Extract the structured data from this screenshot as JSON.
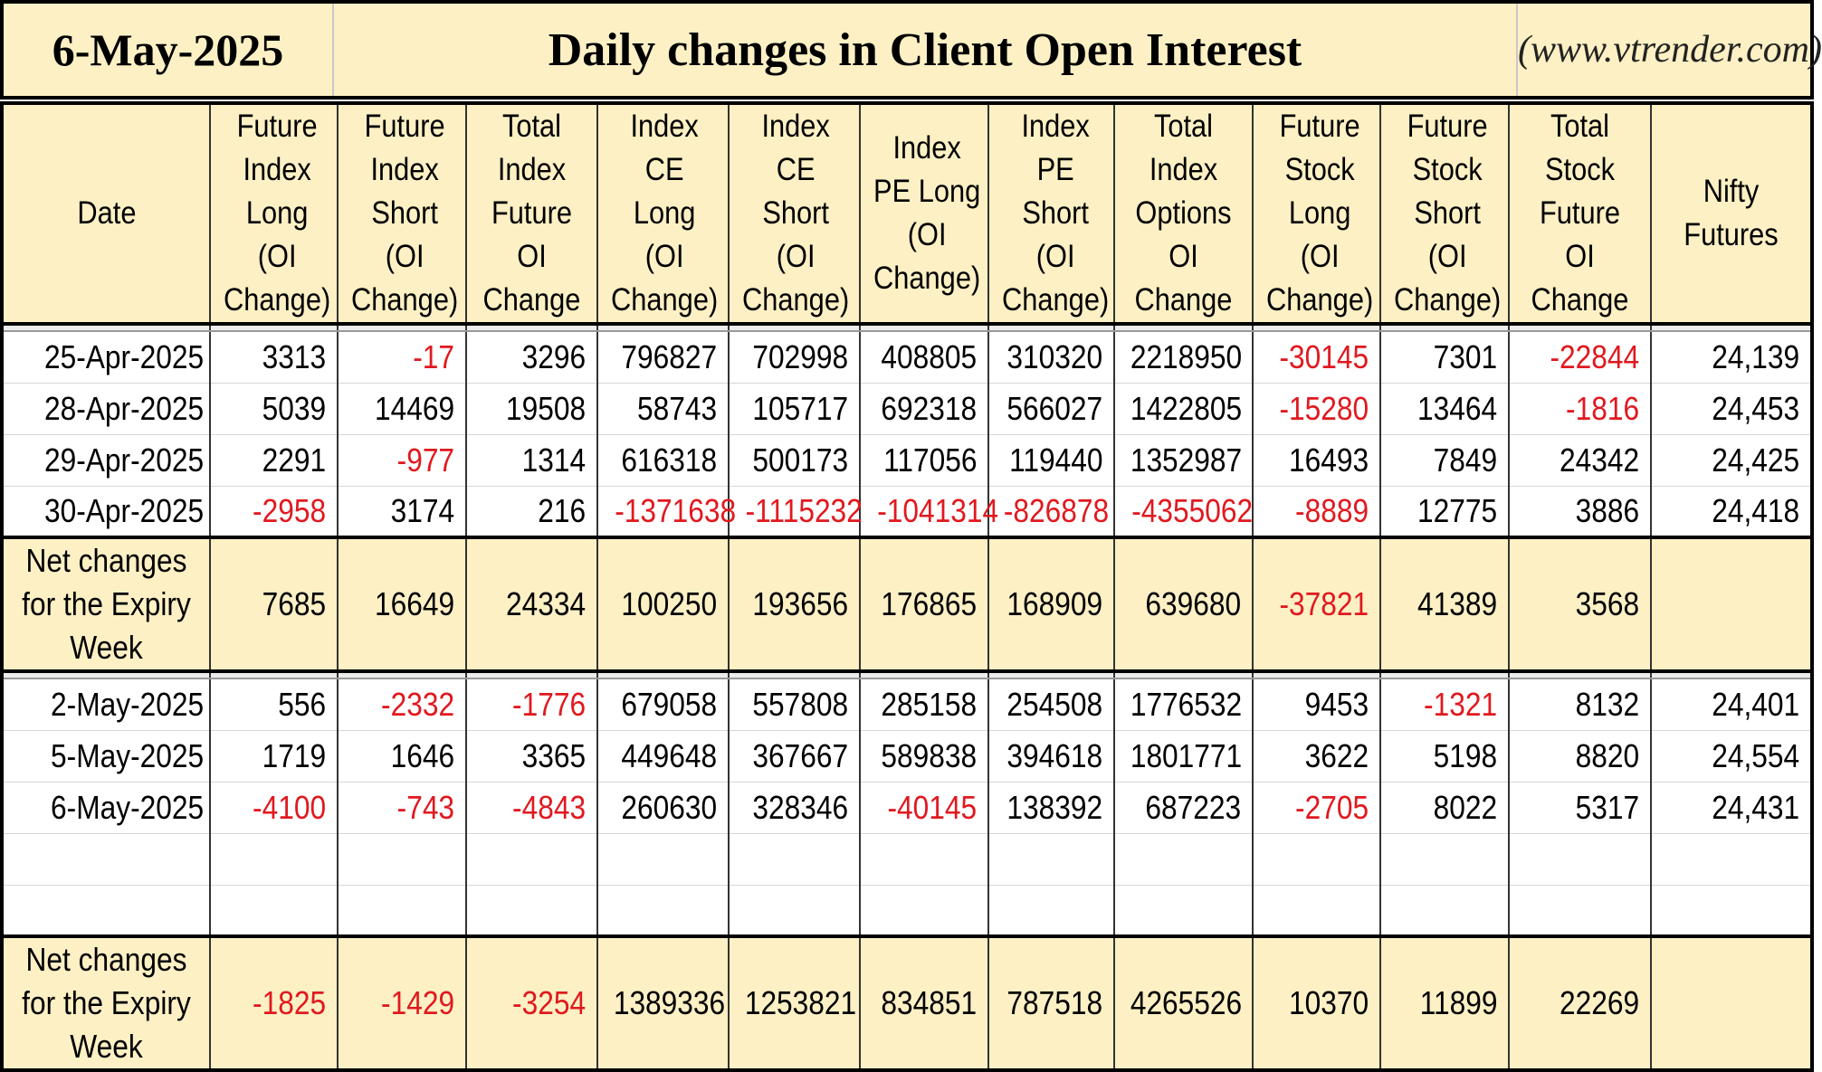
{
  "header": {
    "date": "6-May-2025",
    "title": "Daily changes in Client Open Interest",
    "website": "(www.vtrender.com)"
  },
  "columns": [
    "Date",
    "Future Index Long (OI Change)",
    "Future Index Short (OI Change)",
    "Total Index Future OI Change",
    "Index CE Long (OI Change)",
    "Index CE Short (OI Change)",
    "Index PE Long (OI Change)",
    "Index PE Short (OI Change)",
    "Total Index Options OI Change",
    "Future Stock Long (OI Change)",
    "Future Stock Short (OI Change)",
    "Total Stock Future OI Change",
    "Nifty Futures"
  ],
  "week1": {
    "rows": [
      [
        "25-Apr-2025",
        "3313",
        "-17",
        "3296",
        "796827",
        "702998",
        "408805",
        "310320",
        "2218950",
        "-30145",
        "7301",
        "-22844",
        "24,139"
      ],
      [
        "28-Apr-2025",
        "5039",
        "14469",
        "19508",
        "58743",
        "105717",
        "692318",
        "566027",
        "1422805",
        "-15280",
        "13464",
        "-1816",
        "24,453"
      ],
      [
        "29-Apr-2025",
        "2291",
        "-977",
        "1314",
        "616318",
        "500173",
        "117056",
        "119440",
        "1352987",
        "16493",
        "7849",
        "24342",
        "24,425"
      ],
      [
        "30-Apr-2025",
        "-2958",
        "3174",
        "216",
        "-1371638",
        "-1115232",
        "-1041314",
        "-826878",
        "-4355062",
        "-8889",
        "12775",
        "3886",
        "24,418"
      ]
    ],
    "net": [
      "Net changes for the Expiry Week",
      "7685",
      "16649",
      "24334",
      "100250",
      "193656",
      "176865",
      "168909",
      "639680",
      "-37821",
      "41389",
      "3568",
      ""
    ]
  },
  "week2": {
    "rows": [
      [
        "2-May-2025",
        "556",
        "-2332",
        "-1776",
        "679058",
        "557808",
        "285158",
        "254508",
        "1776532",
        "9453",
        "-1321",
        "8132",
        "24,401"
      ],
      [
        "5-May-2025",
        "1719",
        "1646",
        "3365",
        "449648",
        "367667",
        "589838",
        "394618",
        "1801771",
        "3622",
        "5198",
        "8820",
        "24,554"
      ],
      [
        "6-May-2025",
        "-4100",
        "-743",
        "-4843",
        "260630",
        "328346",
        "-40145",
        "138392",
        "687223",
        "-2705",
        "8022",
        "5317",
        "24,431"
      ]
    ],
    "empty_rows": 2,
    "net": [
      "Net changes for the Expiry Week",
      "-1825",
      "-1429",
      "-3254",
      "1389336",
      "1253821",
      "834851",
      "787518",
      "4265526",
      "10370",
      "11899",
      "22269",
      ""
    ]
  },
  "colors": {
    "header_bg": "#fdf0c4",
    "negative": "#e0191f"
  }
}
